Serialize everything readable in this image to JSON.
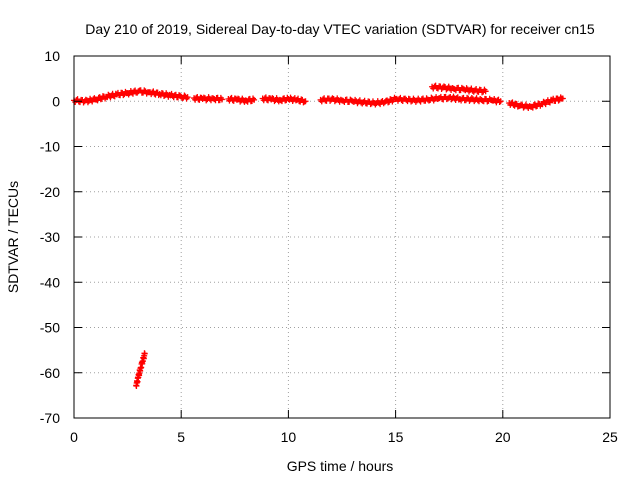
{
  "chart_data": {
    "type": "scatter",
    "title": "Day 210 of 2019, Sidereal Day-to-day VTEC variation (SDTVAR) for receiver cn15",
    "xlabel": "GPS time / hours",
    "ylabel": "SDTVAR / TECUs",
    "xlim": [
      0,
      25
    ],
    "ylim": [
      -70,
      10
    ],
    "xticks": [
      0,
      5,
      10,
      15,
      20,
      25
    ],
    "yticks": [
      10,
      0,
      -10,
      -20,
      -30,
      -40,
      -50,
      -60,
      -70
    ],
    "grid": true,
    "marker": "plus",
    "color": "#ff0000",
    "series": [
      {
        "name": "SDTVAR",
        "segments": [
          {
            "x": [
              0.0,
              0.5,
              1.0,
              1.5,
              2.0,
              2.5,
              3.0,
              3.5,
              4.0,
              4.5,
              5.0,
              5.3
            ],
            "y": [
              0.2,
              0.0,
              0.4,
              1.0,
              1.5,
              1.8,
              2.2,
              2.0,
              1.6,
              1.3,
              1.0,
              0.9
            ]
          },
          {
            "x": [
              5.6,
              6.0,
              6.5,
              6.9
            ],
            "y": [
              0.7,
              0.5,
              0.6,
              0.4
            ]
          },
          {
            "x": [
              7.2,
              7.6,
              8.0,
              8.4
            ],
            "y": [
              0.5,
              0.3,
              0.2,
              0.3
            ]
          },
          {
            "x": [
              8.8,
              9.2,
              9.6,
              10.0,
              10.4,
              10.8
            ],
            "y": [
              0.6,
              0.4,
              0.3,
              0.5,
              0.3,
              0.0
            ]
          },
          {
            "x": [
              11.5,
              12.0,
              12.5,
              13.0,
              13.5,
              14.0,
              14.5,
              15.0,
              15.5,
              16.0,
              16.5,
              17.0,
              17.5,
              18.0,
              18.5,
              19.0,
              19.5,
              19.9
            ],
            "y": [
              0.3,
              0.4,
              0.2,
              0.0,
              -0.2,
              -0.4,
              -0.2,
              0.5,
              0.3,
              0.2,
              0.4,
              0.6,
              0.8,
              0.5,
              0.4,
              0.3,
              0.2,
              0.0
            ]
          },
          {
            "x": [
              20.3,
              20.8,
              21.3,
              21.8,
              22.3,
              22.8
            ],
            "y": [
              -0.4,
              -1.0,
              -1.2,
              -0.6,
              0.2,
              0.6
            ]
          },
          {
            "x": [
              16.7,
              17.2,
              17.7,
              18.2,
              18.7,
              19.2
            ],
            "y": [
              3.2,
              3.0,
              2.8,
              2.6,
              2.4,
              2.2
            ]
          },
          {
            "x": [
              2.9,
              3.0,
              3.1,
              3.2,
              3.3
            ],
            "y": [
              -62.8,
              -61.0,
              -59.0,
              -57.5,
              -55.8
            ]
          }
        ]
      }
    ]
  }
}
